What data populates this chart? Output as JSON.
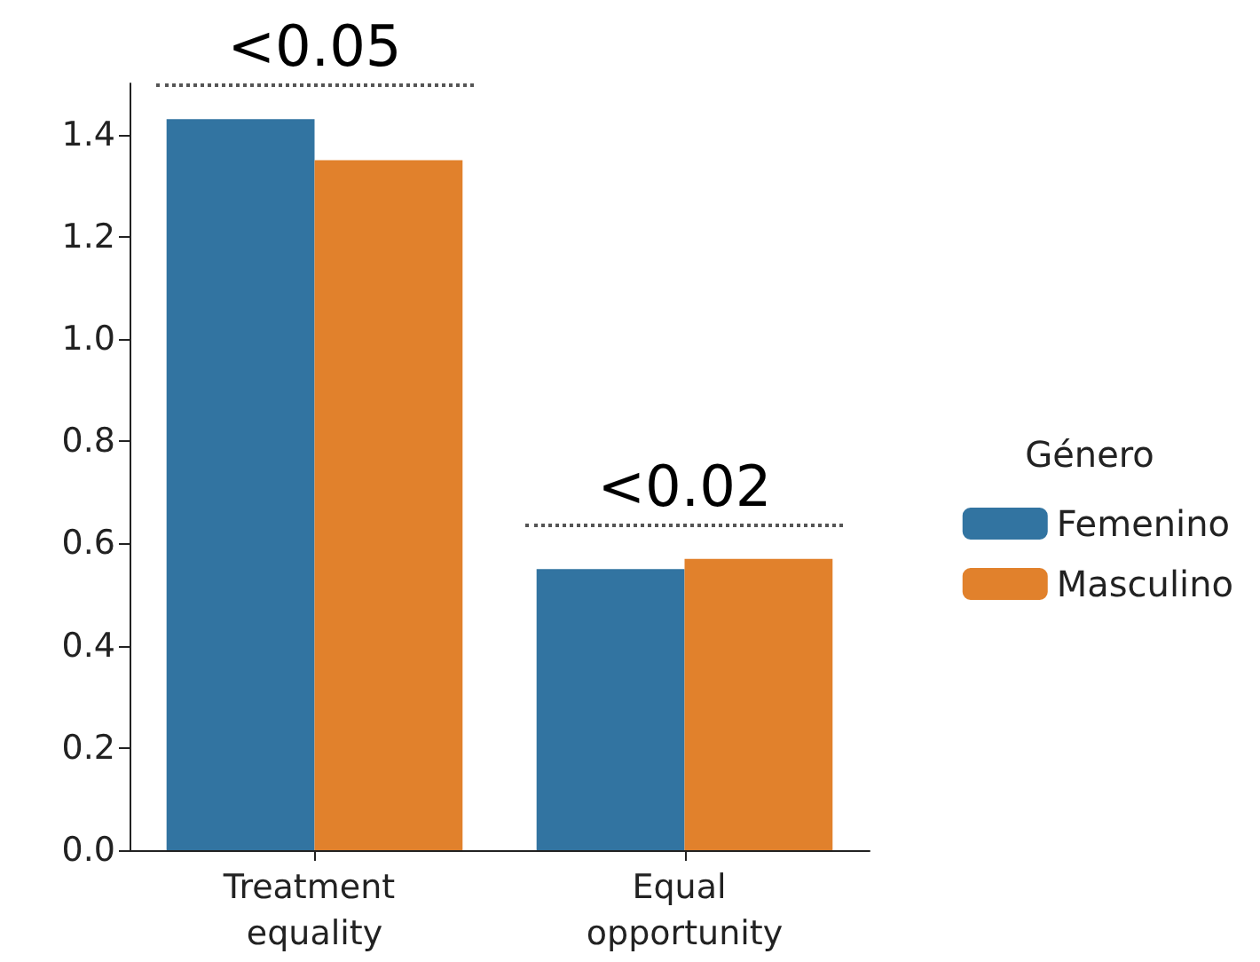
{
  "chart_data": {
    "type": "bar",
    "categories": [
      "Treatment equality",
      "Equal opportunity"
    ],
    "series": [
      {
        "name": "Femenino",
        "color": "#3274a1",
        "values": [
          1.43,
          0.55
        ]
      },
      {
        "name": "Masculino",
        "color": "#e1812c",
        "values": [
          1.35,
          0.57
        ]
      }
    ],
    "ylim": [
      0,
      1.5
    ],
    "yticks": [
      {
        "value": 0,
        "label": "0.0"
      },
      {
        "value": 0.2,
        "label": "0.2"
      },
      {
        "value": 0.4,
        "label": "0.4"
      },
      {
        "value": 0.6,
        "label": "0.6"
      },
      {
        "value": 0.8,
        "label": "0.8"
      },
      {
        "value": 1,
        "label": "1.0"
      },
      {
        "value": 1.2,
        "label": "1.2"
      },
      {
        "value": 1.4,
        "label": "1.4"
      }
    ],
    "legend": "right",
    "legend_title": "Género",
    "grid": false,
    "annotations": [
      "<0.05",
      "<0.02"
    ]
  }
}
